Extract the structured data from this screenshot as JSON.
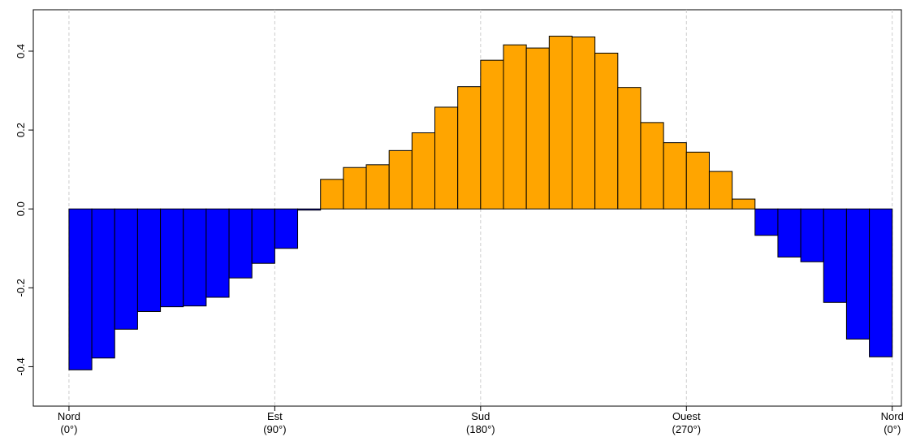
{
  "chart_data": {
    "type": "histogram",
    "bins": [
      0,
      10,
      20,
      30,
      40,
      50,
      60,
      70,
      80,
      90,
      100,
      110,
      120,
      130,
      140,
      150,
      160,
      170,
      180,
      190,
      200,
      210,
      220,
      230,
      240,
      250,
      260,
      270,
      280,
      290,
      300,
      310,
      320,
      330,
      340,
      350,
      360
    ],
    "values": [
      -0.408,
      -0.378,
      -0.305,
      -0.26,
      -0.248,
      -0.246,
      -0.224,
      -0.175,
      -0.138,
      -0.1,
      -0.003,
      0.075,
      0.105,
      0.112,
      0.148,
      0.193,
      0.258,
      0.31,
      0.377,
      0.416,
      0.408,
      0.438,
      0.436,
      0.395,
      0.308,
      0.219,
      0.168,
      0.144,
      0.095,
      0.025,
      -0.067,
      -0.122,
      -0.134,
      -0.237,
      -0.33,
      -0.375
    ],
    "colors": {
      "positive": "#ffa500",
      "negative": "#0000ff"
    },
    "xlim": [
      -15.6,
      364
    ],
    "xticks": [
      {
        "value": 0,
        "label": "Nord\n(0°)"
      },
      {
        "value": 90,
        "label": "Est\n(90°)"
      },
      {
        "value": 180,
        "label": "Sud\n(180°)"
      },
      {
        "value": 270,
        "label": "Ouest\n(270°)"
      },
      {
        "value": 360,
        "label": "Nord\n(0°)"
      }
    ],
    "ylim": [
      -0.5,
      0.505
    ],
    "yticks": [
      -0.4,
      -0.2,
      {
        "value": 0,
        "label": "0.0"
      },
      0.2,
      0.4
    ],
    "grid": "x"
  }
}
